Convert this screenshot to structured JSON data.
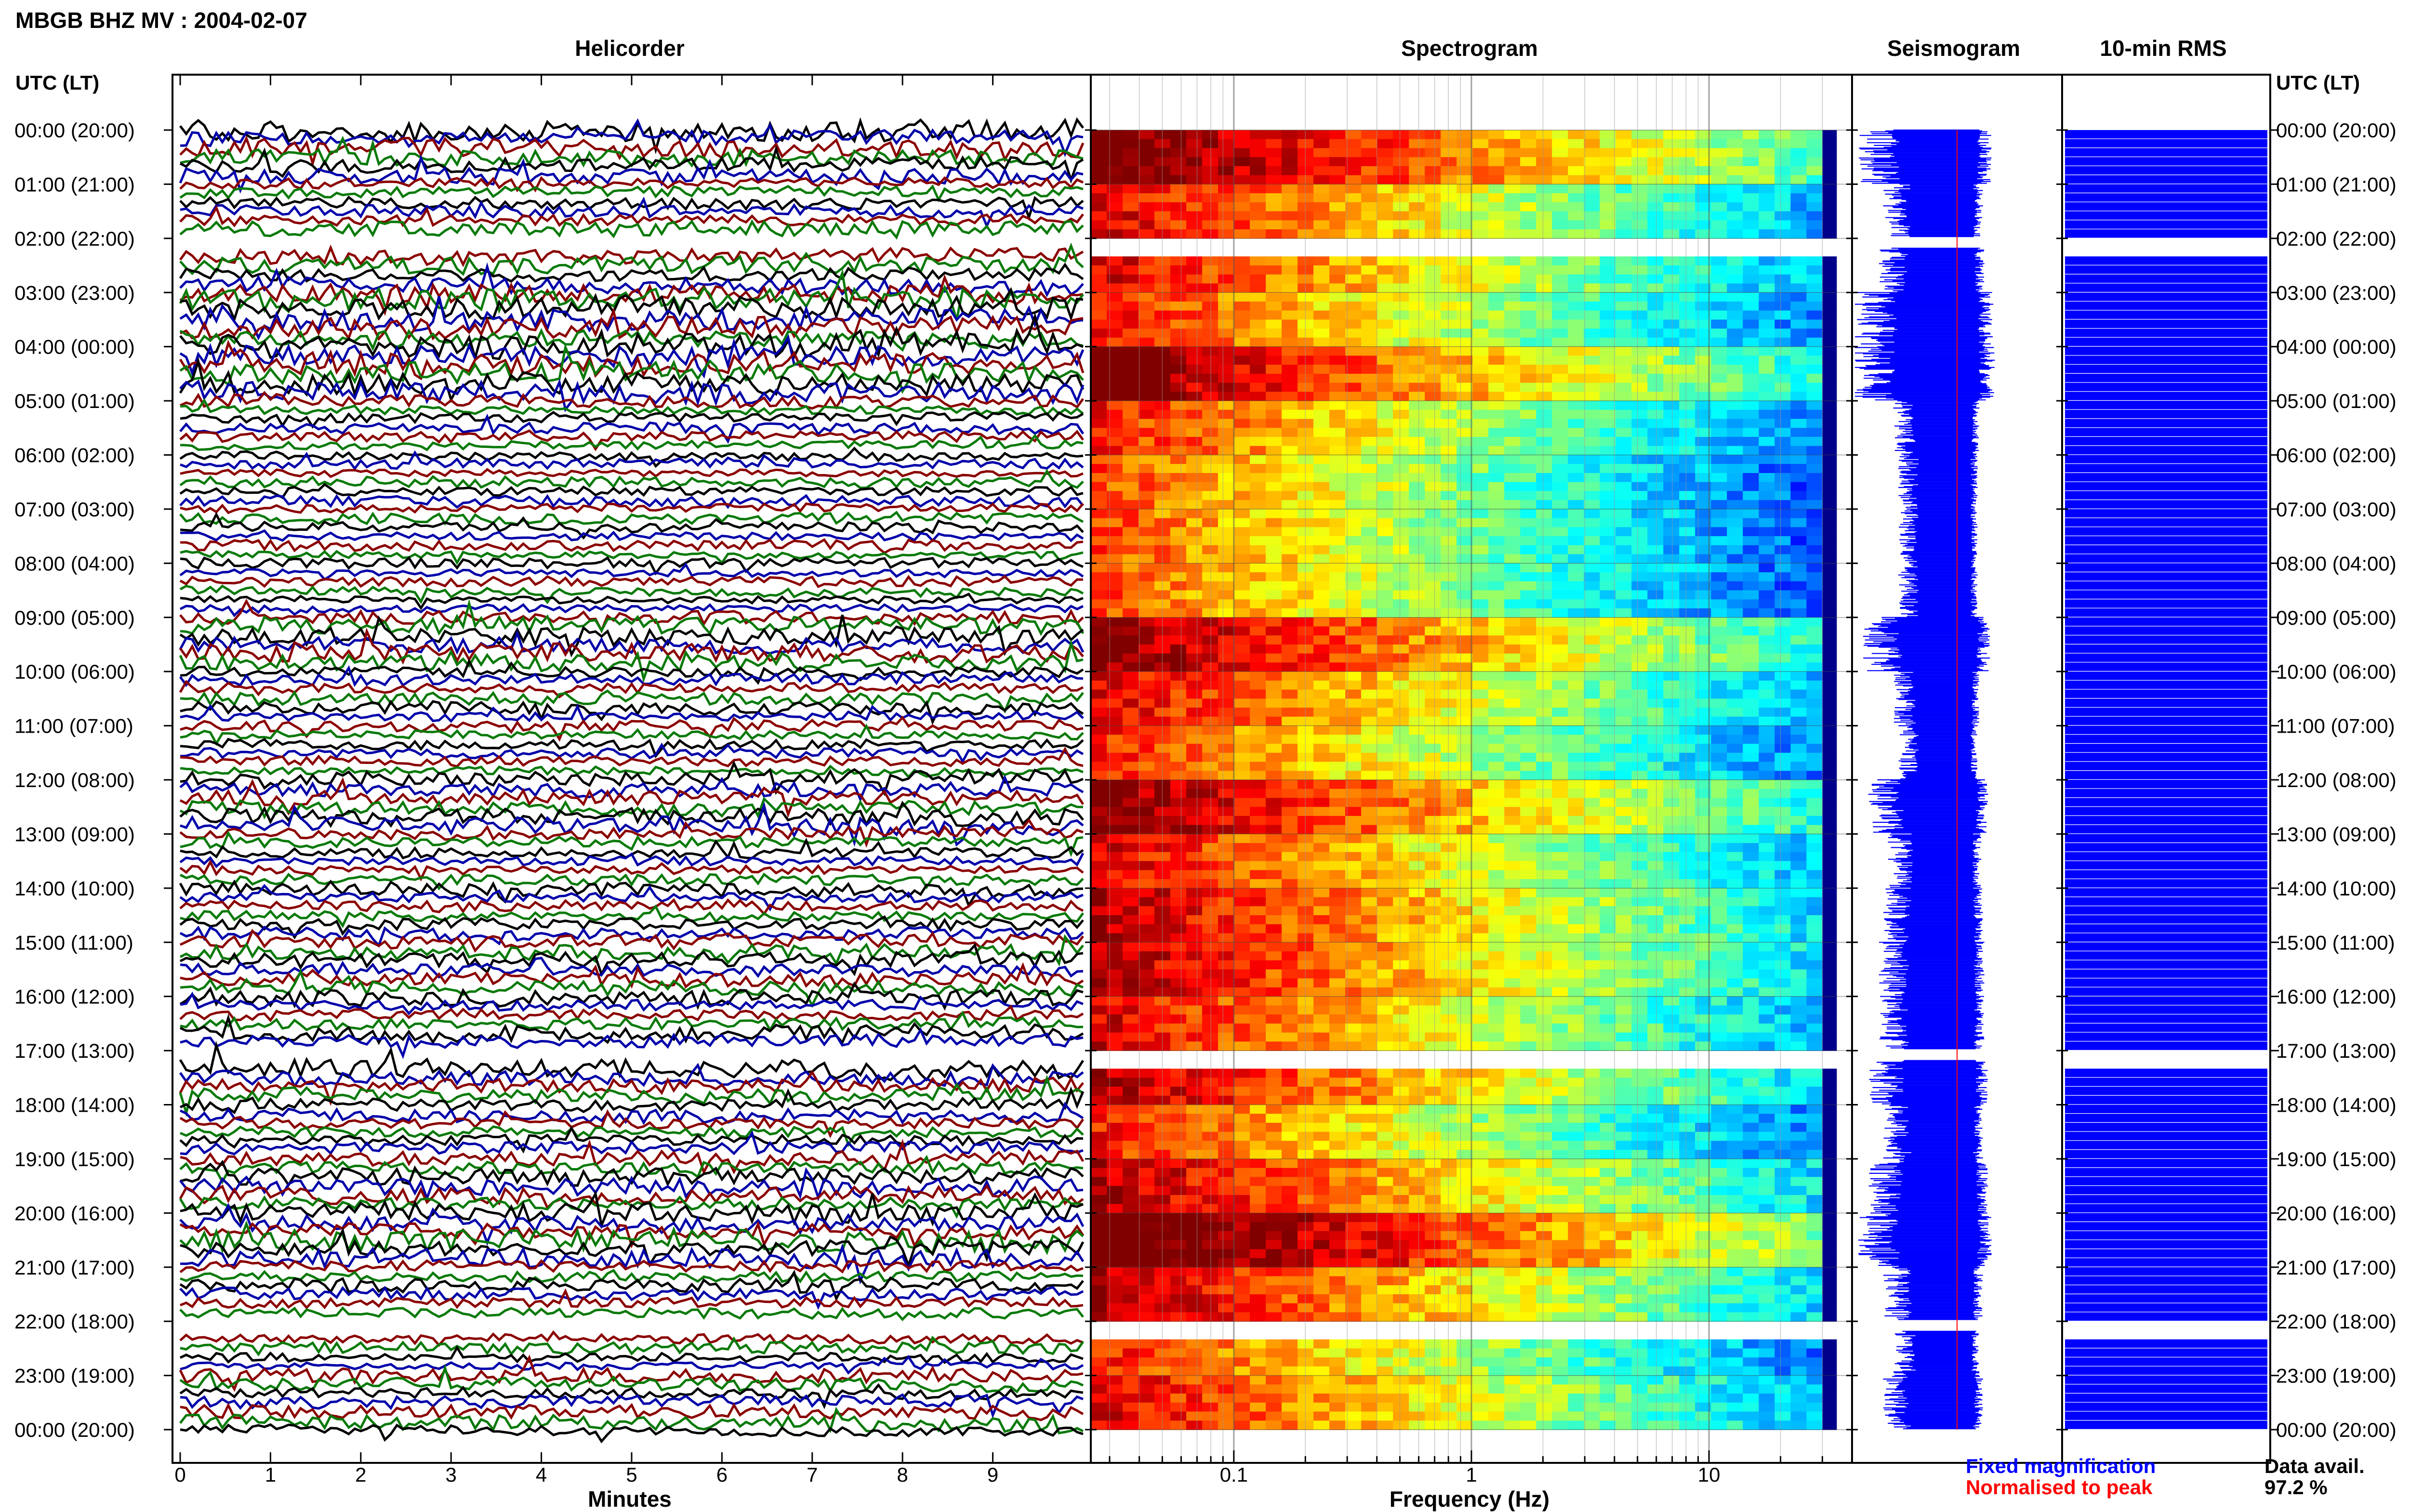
{
  "header": {
    "station": "MBGB BHZ MV : 2004-02-07"
  },
  "panels": {
    "helicorder": "Helicorder",
    "spectrogram": "Spectrogram",
    "seismogram": "Seismogram",
    "rms": "10-min RMS"
  },
  "time_axis": {
    "left_label": "UTC (LT)",
    "right_label": "UTC (LT)"
  },
  "legend": {
    "fixed": "Fixed magnification",
    "normalised": "Normalised to peak",
    "avail_label": "Data avail.",
    "avail_value": "97.2 %"
  },
  "colors": {
    "trace_cycle": [
      "#000000",
      "#0000aa",
      "#8b0000",
      "#0a7a0a"
    ],
    "fixed": "#0000ff",
    "normalised": "#ff0000",
    "spectrogram_low": "#00008b",
    "spectrogram_high": "#ff0000"
  },
  "chart_data": [
    {
      "type": "line",
      "name": "helicorder",
      "title": "Helicorder",
      "xlabel": "Minutes",
      "ylabel": "UTC (LT)",
      "x_ticks": [
        "0",
        "1",
        "2",
        "3",
        "4",
        "5",
        "6",
        "7",
        "8",
        "9"
      ],
      "xlim": [
        0,
        10
      ],
      "y_ticks": [
        "00:00 (20:00)",
        "01:00 (21:00)",
        "02:00 (22:00)",
        "03:00 (23:00)",
        "04:00 (00:00)",
        "05:00 (01:00)",
        "06:00 (02:00)",
        "07:00 (03:00)",
        "08:00 (04:00)",
        "09:00 (05:00)",
        "10:00 (06:00)",
        "11:00 (07:00)",
        "12:00 (08:00)",
        "13:00 (09:00)",
        "14:00 (10:00)",
        "15:00 (11:00)",
        "16:00 (12:00)",
        "17:00 (13:00)",
        "18:00 (14:00)",
        "19:00 (15:00)",
        "20:00 (16:00)",
        "21:00 (17:00)",
        "22:00 (18:00)",
        "23:00 (19:00)",
        "00:00 (20:00)"
      ],
      "hour_amplitude": [
        0.8,
        0.55,
        0.6,
        0.85,
        0.9,
        0.45,
        0.4,
        0.4,
        0.4,
        0.75,
        0.45,
        0.4,
        0.7,
        0.5,
        0.55,
        0.6,
        0.6,
        0.7,
        0.55,
        0.7,
        0.8,
        0.55,
        0.45,
        0.55
      ],
      "gaps_utc": [
        "02:00",
        "17:00",
        "22:00"
      ]
    },
    {
      "type": "heatmap",
      "name": "spectrogram",
      "title": "Spectrogram",
      "xlabel": "Frequency (Hz)",
      "x_scale": "log",
      "x_ticks": [
        "0.1",
        "1",
        "10"
      ],
      "xlim": [
        0.025,
        40
      ],
      "y_range_hours": [
        0,
        24
      ],
      "colormap": "jet",
      "hour_power_offset": [
        0.2,
        0.05,
        0.05,
        0.0,
        0.15,
        0.0,
        -0.05,
        -0.05,
        -0.05,
        0.15,
        0.05,
        0.0,
        0.15,
        0.05,
        0.1,
        0.1,
        0.05,
        0.1,
        0.0,
        0.1,
        0.25,
        0.1,
        0.0,
        0.05
      ]
    },
    {
      "type": "area",
      "name": "seismogram",
      "title": "Seismogram",
      "series": [
        {
          "name": "Fixed magnification",
          "color": "#0000ff"
        },
        {
          "name": "Normalised to peak",
          "color": "#ff0000"
        }
      ]
    },
    {
      "type": "bar",
      "name": "rms",
      "title": "10-min RMS",
      "color": "#0000ff"
    }
  ]
}
